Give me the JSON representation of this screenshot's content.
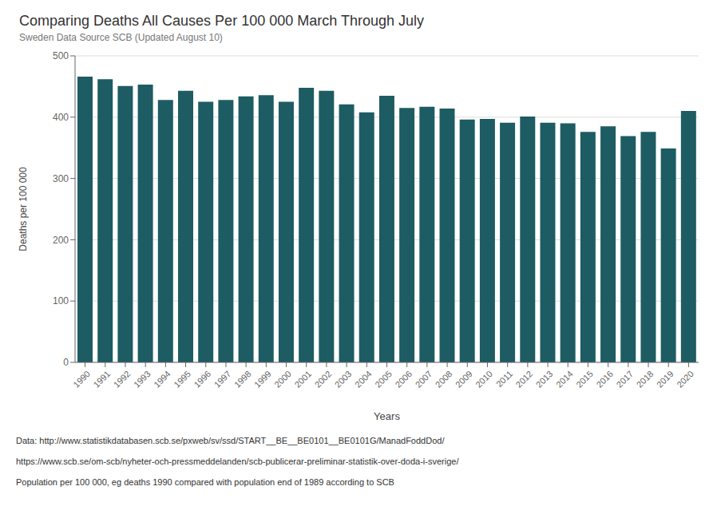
{
  "chart_data": {
    "type": "bar",
    "title": "Comparing Deaths All Causes Per 100 000 March Through July",
    "subtitle": "Sweden Data Source SCB (Updated August 10)",
    "xlabel": "Years",
    "ylabel": "Deaths per 100 000",
    "categories": [
      "1990",
      "1991",
      "1992",
      "1993",
      "1994",
      "1995",
      "1996",
      "1997",
      "1998",
      "1999",
      "2000",
      "2001",
      "2002",
      "2003",
      "2004",
      "2005",
      "2006",
      "2007",
      "2008",
      "2009",
      "2010",
      "2011",
      "2012",
      "2013",
      "2014",
      "2015",
      "2016",
      "2017",
      "2018",
      "2019",
      "2020"
    ],
    "values": [
      466,
      462,
      451,
      453,
      428,
      443,
      425,
      428,
      434,
      436,
      425,
      448,
      443,
      421,
      408,
      435,
      415,
      417,
      414,
      396,
      397,
      391,
      401,
      391,
      390,
      376,
      385,
      369,
      376,
      349,
      410
    ],
    "color": "#1d5c63",
    "ylim": [
      0,
      500
    ],
    "yticks": [
      0,
      100,
      200,
      300,
      400,
      500
    ],
    "grid": true,
    "annotations": [
      "Data: http://www.statistikdatabasen.scb.se/pxweb/sv/ssd/START__BE__BE0101__BE0101G/ManadFoddDod/",
      "https://www.scb.se/om-scb/nyheter-och-pressmeddelanden/scb-publicerar-preliminar-statistik-over-doda-i-sverige/",
      "Population per 100 000, eg deaths 1990 compared with population end of 1989 according to SCB"
    ]
  }
}
